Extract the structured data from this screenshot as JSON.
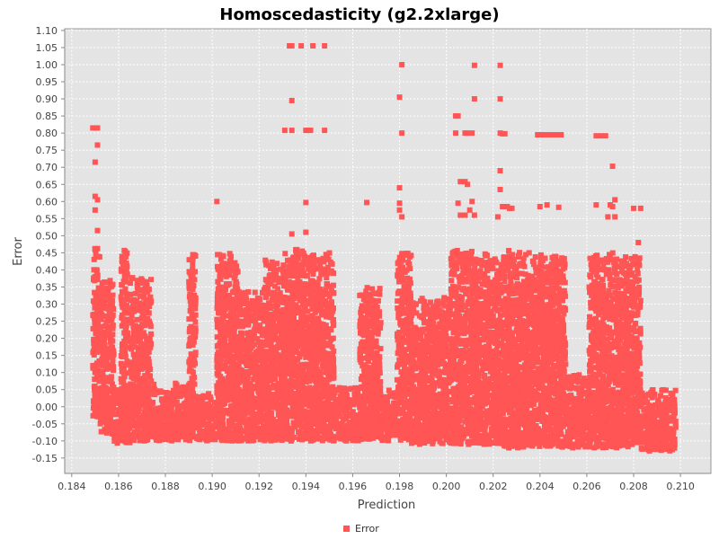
{
  "chart_data": {
    "type": "scatter",
    "title": "Homoscedasticity (g2.2xlarge)",
    "xlabel": "Prediction",
    "ylabel": "Error",
    "xlim": [
      0.1837,
      0.2113
    ],
    "ylim": [
      -0.195,
      1.105
    ],
    "x_ticks": [
      "0.184",
      "0.186",
      "0.188",
      "0.190",
      "0.192",
      "0.194",
      "0.196",
      "0.198",
      "0.200",
      "0.202",
      "0.204",
      "0.206",
      "0.208",
      "0.210"
    ],
    "y_ticks": [
      "-0.15",
      "-0.10",
      "-0.05",
      "0.00",
      "0.05",
      "0.10",
      "0.15",
      "0.20",
      "0.25",
      "0.30",
      "0.35",
      "0.40",
      "0.45",
      "0.50",
      "0.55",
      "0.60",
      "0.65",
      "0.70",
      "0.75",
      "0.80",
      "0.85",
      "0.90",
      "0.95",
      "1.00",
      "1.05",
      "1.10"
    ],
    "grid": true,
    "legend": "bottom-center",
    "series": [
      {
        "name": "Error",
        "color": "#ff5555",
        "clusters": [
          {
            "x": [
              0.1849,
              0.1852
            ],
            "y": [
              -0.03,
              0.47
            ]
          },
          {
            "x": [
              0.1852,
              0.1858
            ],
            "y": [
              -0.08,
              0.37
            ]
          },
          {
            "x": [
              0.1858,
              0.1865
            ],
            "y": [
              -0.11,
              0.05
            ]
          },
          {
            "x": [
              0.1861,
              0.1864
            ],
            "y": [
              -0.1,
              0.46
            ]
          },
          {
            "x": [
              0.1865,
              0.1874
            ],
            "y": [
              -0.1,
              0.38
            ]
          },
          {
            "x": [
              0.1874,
              0.1891
            ],
            "y": [
              -0.1,
              0.07
            ]
          },
          {
            "x": [
              0.189,
              0.1893
            ],
            "y": [
              -0.09,
              0.45
            ]
          },
          {
            "x": [
              0.1893,
              0.1902
            ],
            "y": [
              -0.1,
              0.04
            ]
          },
          {
            "x": [
              0.1902,
              0.1911
            ],
            "y": [
              -0.1,
              0.45
            ]
          },
          {
            "x": [
              0.1911,
              0.1922
            ],
            "y": [
              -0.1,
              0.34
            ]
          },
          {
            "x": [
              0.1922,
              0.1931
            ],
            "y": [
              -0.1,
              0.43
            ]
          },
          {
            "x": [
              0.1931,
              0.194
            ],
            "y": [
              -0.1,
              0.47
            ]
          },
          {
            "x": [
              0.194,
              0.1952
            ],
            "y": [
              -0.1,
              0.45
            ]
          },
          {
            "x": [
              0.1952,
              0.1963
            ],
            "y": [
              -0.1,
              0.06
            ]
          },
          {
            "x": [
              0.1963,
              0.1972
            ],
            "y": [
              -0.1,
              0.35
            ]
          },
          {
            "x": [
              0.1972,
              0.1979
            ],
            "y": [
              -0.1,
              0.06
            ]
          },
          {
            "x": [
              0.1979,
              0.1985
            ],
            "y": [
              -0.1,
              0.45
            ]
          },
          {
            "x": [
              0.1985,
              0.2002
            ],
            "y": [
              -0.11,
              0.32
            ]
          },
          {
            "x": [
              0.2002,
              0.2013
            ],
            "y": [
              -0.11,
              0.46
            ]
          },
          {
            "x": [
              0.2013,
              0.2023
            ],
            "y": [
              -0.11,
              0.45
            ]
          },
          {
            "x": [
              0.2023,
              0.2033
            ],
            "y": [
              -0.12,
              0.46
            ]
          },
          {
            "x": [
              0.2033,
              0.2041
            ],
            "y": [
              -0.12,
              0.45
            ]
          },
          {
            "x": [
              0.2041,
              0.2051
            ],
            "y": [
              -0.12,
              0.45
            ]
          },
          {
            "x": [
              0.2051,
              0.2061
            ],
            "y": [
              -0.12,
              0.1
            ]
          },
          {
            "x": [
              0.2061,
              0.2073
            ],
            "y": [
              -0.12,
              0.45
            ]
          },
          {
            "x": [
              0.2073,
              0.2083
            ],
            "y": [
              -0.12,
              0.44
            ]
          },
          {
            "x": [
              0.2083,
              0.2098
            ],
            "y": [
              -0.13,
              0.05
            ]
          }
        ],
        "outliers": [
          [
            0.1849,
            0.815
          ],
          [
            0.1851,
            0.815
          ],
          [
            0.1851,
            0.765
          ],
          [
            0.185,
            0.715
          ],
          [
            0.185,
            0.615
          ],
          [
            0.1851,
            0.605
          ],
          [
            0.185,
            0.575
          ],
          [
            0.1851,
            0.515
          ],
          [
            0.1902,
            0.6
          ],
          [
            0.1931,
            0.808
          ],
          [
            0.1934,
            0.808
          ],
          [
            0.1933,
            1.055
          ],
          [
            0.1934,
            1.055
          ],
          [
            0.1938,
            1.055
          ],
          [
            0.1943,
            1.055
          ],
          [
            0.1948,
            1.055
          ],
          [
            0.1934,
            0.895
          ],
          [
            0.194,
            0.808
          ],
          [
            0.1941,
            0.808
          ],
          [
            0.1942,
            0.808
          ],
          [
            0.1948,
            0.808
          ],
          [
            0.194,
            0.597
          ],
          [
            0.194,
            0.51
          ],
          [
            0.1934,
            0.505
          ],
          [
            0.1966,
            0.597
          ],
          [
            0.1981,
            1.0
          ],
          [
            0.198,
            0.905
          ],
          [
            0.1981,
            0.8
          ],
          [
            0.198,
            0.64
          ],
          [
            0.198,
            0.595
          ],
          [
            0.198,
            0.575
          ],
          [
            0.1981,
            0.555
          ],
          [
            0.2004,
            0.85
          ],
          [
            0.2005,
            0.85
          ],
          [
            0.2004,
            0.8
          ],
          [
            0.2008,
            0.8
          ],
          [
            0.2009,
            0.8
          ],
          [
            0.2011,
            0.8
          ],
          [
            0.2005,
            0.595
          ],
          [
            0.2006,
            0.658
          ],
          [
            0.2008,
            0.658
          ],
          [
            0.2009,
            0.65
          ],
          [
            0.2006,
            0.56
          ],
          [
            0.2008,
            0.56
          ],
          [
            0.201,
            0.575
          ],
          [
            0.2012,
            0.9
          ],
          [
            0.2012,
            0.998
          ],
          [
            0.2011,
            0.6
          ],
          [
            0.2012,
            0.56
          ],
          [
            0.2023,
            0.998
          ],
          [
            0.2023,
            0.9
          ],
          [
            0.2023,
            0.8
          ],
          [
            0.2024,
            0.798
          ],
          [
            0.2025,
            0.798
          ],
          [
            0.2022,
            0.555
          ],
          [
            0.2023,
            0.635
          ],
          [
            0.2023,
            0.69
          ],
          [
            0.2024,
            0.585
          ],
          [
            0.2026,
            0.585
          ],
          [
            0.2027,
            0.58
          ],
          [
            0.2028,
            0.58
          ],
          [
            0.2039,
            0.795
          ],
          [
            0.2041,
            0.795
          ],
          [
            0.2043,
            0.795
          ],
          [
            0.2045,
            0.795
          ],
          [
            0.2047,
            0.795
          ],
          [
            0.2049,
            0.795
          ],
          [
            0.204,
            0.585
          ],
          [
            0.2043,
            0.59
          ],
          [
            0.2048,
            0.583
          ],
          [
            0.2064,
            0.792
          ],
          [
            0.2066,
            0.792
          ],
          [
            0.2068,
            0.792
          ],
          [
            0.2064,
            0.59
          ],
          [
            0.207,
            0.59
          ],
          [
            0.2071,
            0.703
          ],
          [
            0.2069,
            0.555
          ],
          [
            0.2072,
            0.555
          ],
          [
            0.2071,
            0.585
          ],
          [
            0.2072,
            0.605
          ],
          [
            0.208,
            0.58
          ],
          [
            0.2083,
            0.58
          ],
          [
            0.2082,
            0.48
          ]
        ]
      }
    ]
  }
}
